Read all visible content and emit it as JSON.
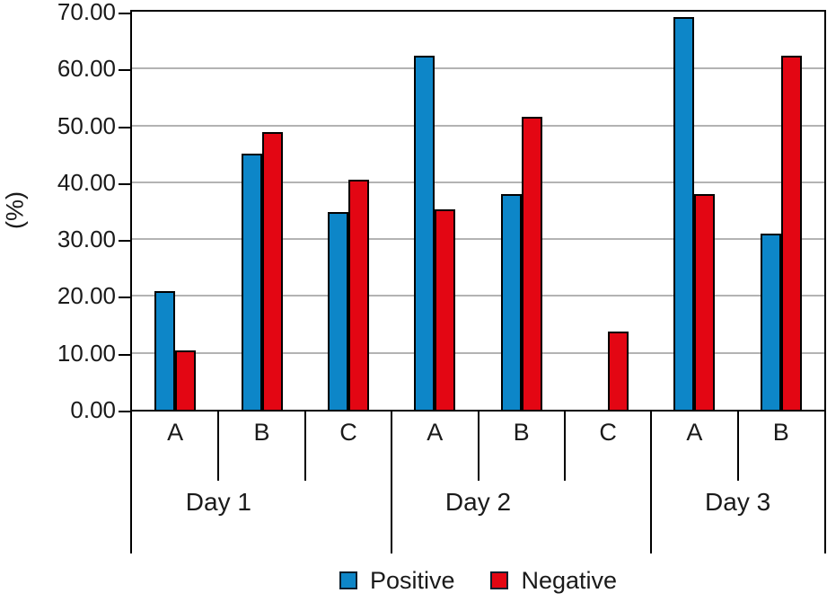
{
  "figure": {
    "background": "#ffffff",
    "frame_color": "#000000"
  },
  "chart_data": {
    "type": "bar",
    "title": "",
    "ylabel": "(%)",
    "ylim": [
      0,
      70
    ],
    "ytick_step": 10,
    "ytick_labels": [
      "0.00",
      "10.00",
      "20.00",
      "30.00",
      "40.00",
      "50.00",
      "60.00",
      "70.00"
    ],
    "grid": {
      "horizontal": true,
      "color": "#b3b3b3"
    },
    "bar_outline": "#000000",
    "groups": [
      {
        "label": "Day 1",
        "categories": [
          "A",
          "B",
          "C"
        ]
      },
      {
        "label": "Day 2",
        "categories": [
          "A",
          "B",
          "C"
        ]
      },
      {
        "label": "Day 3",
        "categories": [
          "A",
          "B"
        ]
      }
    ],
    "categories": [
      "A",
      "B",
      "C",
      "A",
      "B",
      "C",
      "A",
      "B"
    ],
    "series": [
      {
        "name": "Positive",
        "color": "#0d86c8",
        "values": [
          20.8,
          45.0,
          34.7,
          62.2,
          38.0,
          0.0,
          69.0,
          31.0
        ]
      },
      {
        "name": "Negative",
        "color": "#e30613",
        "values": [
          10.5,
          48.8,
          40.5,
          35.2,
          51.5,
          13.7,
          38.0,
          62.2
        ]
      }
    ],
    "legend": {
      "position": "bottom",
      "entries": [
        "Positive",
        "Negative"
      ]
    }
  }
}
